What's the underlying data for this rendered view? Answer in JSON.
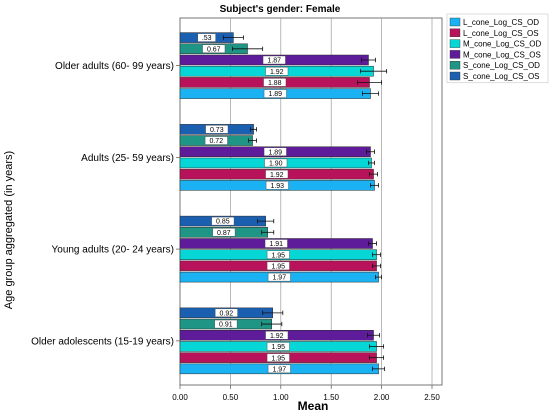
{
  "chart_data": {
    "type": "bar",
    "orientation": "horizontal",
    "title": "Subject's gender: Female",
    "xlabel": "Mean",
    "ylabel": "Age group aggregated (in years)",
    "xlim": [
      0,
      2.5
    ],
    "xticks": [
      "0.00",
      "0.50",
      "1.00",
      "1.50",
      "2.00",
      "2.50"
    ],
    "grid": "vertical",
    "legend_position": "top-right",
    "categories": [
      "Older adults (60- 99 years)",
      "Adults (25- 59 years)",
      "Young adults (20- 24 years)",
      "Older adolescents (15-19 years)"
    ],
    "series": [
      {
        "name": "L_cone_Log_CS_OD",
        "color": "#1AB2F2",
        "values": [
          1.89,
          1.93,
          1.97,
          1.97
        ],
        "errors": [
          0.08,
          0.04,
          0.03,
          0.06
        ],
        "labels": [
          "1.89",
          "1.93",
          "1.97",
          "1.97"
        ]
      },
      {
        "name": "L_cone_Log_CS_OS",
        "color": "#B8135A",
        "values": [
          1.88,
          1.92,
          1.95,
          1.95
        ],
        "errors": [
          0.12,
          0.04,
          0.04,
          0.07
        ],
        "labels": [
          "1.88",
          "1.92",
          "1.95",
          "1.95"
        ]
      },
      {
        "name": "M_cone_Log_CS_OD",
        "color": "#06D6D6",
        "values": [
          1.92,
          1.9,
          1.95,
          1.95
        ],
        "errors": [
          0.13,
          0.03,
          0.04,
          0.07
        ],
        "labels": [
          "1.92",
          "1.90",
          "1.95",
          "1.95"
        ]
      },
      {
        "name": "M_cone_Log_CS_OS",
        "color": "#5E1C9B",
        "values": [
          1.87,
          1.89,
          1.91,
          1.92
        ],
        "errors": [
          0.07,
          0.04,
          0.04,
          0.06
        ],
        "labels": [
          "1.87",
          "1.89",
          "1.91",
          "1.92"
        ]
      },
      {
        "name": "S_cone_Log_CS_OD",
        "color": "#1E9585",
        "values": [
          0.67,
          0.72,
          0.87,
          0.91
        ],
        "errors": [
          0.15,
          0.04,
          0.06,
          0.1
        ],
        "labels": [
          "0.67",
          "0.72",
          "0.87",
          "0.91"
        ]
      },
      {
        "name": "S_cone_Log_CS_OS",
        "color": "#1A5FB0",
        "values": [
          0.53,
          0.73,
          0.85,
          0.92
        ],
        "errors": [
          0.1,
          0.03,
          0.08,
          0.1
        ],
        "labels": [
          ".53",
          "0.73",
          "0.85",
          "0.92"
        ]
      }
    ]
  }
}
